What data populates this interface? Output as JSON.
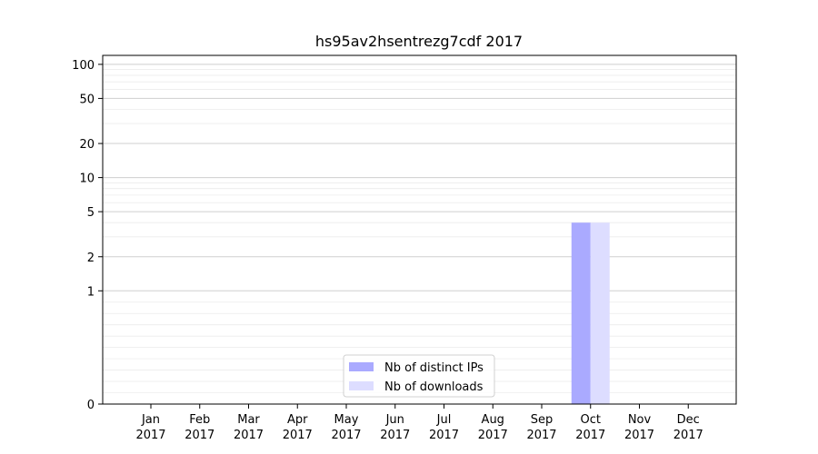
{
  "chart_data": {
    "type": "bar",
    "title": "hs95av2hsentrezg7cdf 2017",
    "xlabel": "",
    "ylabel": "",
    "y_scale": "symlog",
    "ylim": [
      0,
      120
    ],
    "y_ticks": [
      0,
      1,
      2,
      5,
      10,
      20,
      50,
      100
    ],
    "y_tick_labels": [
      "0",
      "1",
      "2",
      "5",
      "10",
      "20",
      "50",
      "100"
    ],
    "grid": "horizontal",
    "categories": [
      [
        "Jan",
        "2017"
      ],
      [
        "Feb",
        "2017"
      ],
      [
        "Mar",
        "2017"
      ],
      [
        "Apr",
        "2017"
      ],
      [
        "May",
        "2017"
      ],
      [
        "Jun",
        "2017"
      ],
      [
        "Jul",
        "2017"
      ],
      [
        "Aug",
        "2017"
      ],
      [
        "Sep",
        "2017"
      ],
      [
        "Oct",
        "2017"
      ],
      [
        "Nov",
        "2017"
      ],
      [
        "Dec",
        "2017"
      ]
    ],
    "series": [
      {
        "name": "Nb of distinct IPs",
        "color": "#aaaaff",
        "values": [
          0,
          0,
          0,
          0,
          0,
          0,
          0,
          0,
          0,
          4,
          0,
          0
        ]
      },
      {
        "name": "Nb of downloads",
        "color": "#ddddff",
        "values": [
          0,
          0,
          0,
          0,
          0,
          0,
          0,
          0,
          0,
          4,
          0,
          0
        ]
      }
    ],
    "legend_position": "lower center"
  }
}
